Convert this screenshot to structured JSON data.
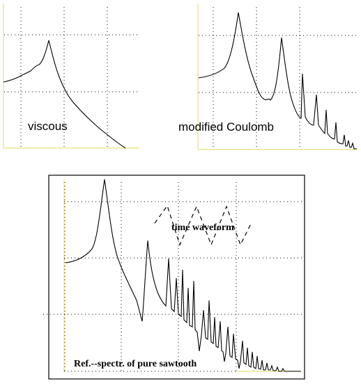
{
  "chart_data": [
    {
      "type": "line",
      "annotations": [
        "viscous"
      ],
      "accent_axis_color": "#e8e07a",
      "grid": true
    },
    {
      "type": "line",
      "annotations": [
        "modified Coulomb"
      ],
      "accent_axis_color": "#e8e07a",
      "grid": true
    },
    {
      "type": "line",
      "annotations": [
        "time waveform",
        "Ref.--spectr. of pure sawtooth"
      ],
      "accent_axis_color": "#e8e07a",
      "grid": true,
      "inset": "sawtooth time waveform"
    }
  ]
}
